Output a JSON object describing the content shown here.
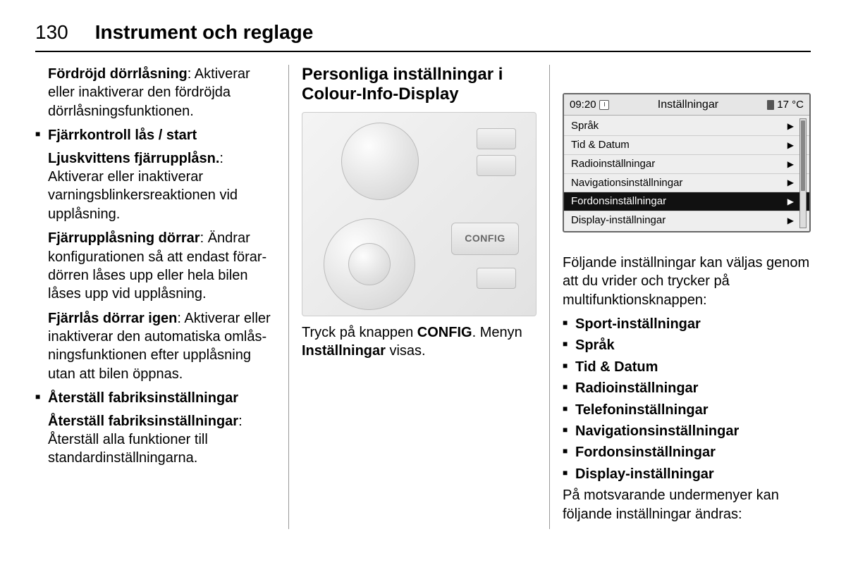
{
  "page_number": "130",
  "chapter_title": "Instrument och reglage",
  "col1": {
    "p1_bold": "Fördröjd dörrlåsning",
    "p1_rest": ": Aktiverar eller inaktiverar den fördröjda dörrlås­ningsfunktionen.",
    "b1_head": "Fjärrkontroll lås / start",
    "b1_p1_bold": "Ljuskvittens fjärrupplåsn.",
    "b1_p1_rest": ": Aktiverar eller inaktiverar varningsblinkers­reaktionen vid upplåsning.",
    "b1_p2_bold": "Fjärrupplåsning dörrar",
    "b1_p2_rest": ": Ändrar kon­figurationen så att endast förar­dörren låses upp eller hela bilen låses upp vid upplåsning.",
    "b1_p3_bold": "Fjärrlås dörrar igen",
    "b1_p3_rest": ": Aktiverar eller inaktiverar den automatiska omlås­ningsfunktionen efter upplåsning utan att bilen öppnas.",
    "b2_head": "Återställ fabriksinställningar",
    "b2_p1_bold": "Återställ fabriksinställningar",
    "b2_p1_rest": ": Åter­ställ alla funktioner till standardin­ställningarna."
  },
  "col2": {
    "heading": "Personliga inställningar i Colour-Info-Display",
    "config_label": "CONFIG",
    "caption_pre": "Tryck på knappen ",
    "caption_bold1": "CONFIG",
    "caption_mid": ". Menyn ",
    "caption_bold2": "Inställningar",
    "caption_post": " visas."
  },
  "col3": {
    "device": {
      "time": "09:20",
      "title": "Inställningar",
      "temp": "17 °C",
      "rows": [
        {
          "label": "Språk",
          "selected": false
        },
        {
          "label": "Tid & Datum",
          "selected": false
        },
        {
          "label": "Radioinställningar",
          "selected": false
        },
        {
          "label": "Navigationsinställningar",
          "selected": false
        },
        {
          "label": "Fordonsinställningar",
          "selected": true
        },
        {
          "label": "Display-inställningar",
          "selected": false
        }
      ]
    },
    "intro": "Följande inställningar kan väljas genom att du vrider och trycker på multifunktionsknappen:",
    "bullets": [
      "Sport-inställningar",
      "Språk",
      "Tid & Datum",
      "Radioinställningar",
      "Telefoninställningar",
      "Navigationsinställningar",
      "Fordonsinställningar",
      "Display-inställningar"
    ],
    "outro": "På motsvarande undermenyer kan följande inställningar ändras:"
  }
}
